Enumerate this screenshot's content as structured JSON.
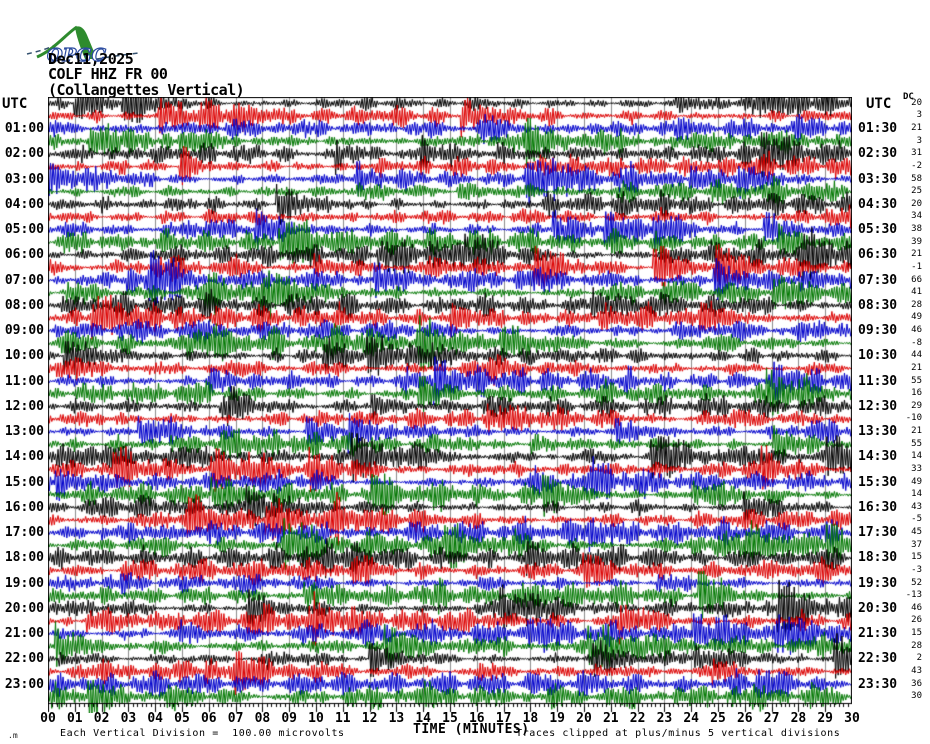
{
  "logo": {
    "text": "OPGC"
  },
  "header": {
    "date": "Dec11,2025",
    "station": "COLF HHZ FR 00",
    "location": "(Collangettes Vertical)"
  },
  "axis": {
    "utc_left": "UTC",
    "utc_right": "UTC",
    "dc_label": "DC",
    "left_time_labels": [
      "01:00",
      "02:00",
      "03:00",
      "04:00",
      "05:00",
      "06:00",
      "07:00",
      "08:00",
      "09:00",
      "10:00",
      "11:00",
      "12:00",
      "13:00",
      "14:00",
      "15:00",
      "16:00",
      "17:00",
      "18:00",
      "19:00",
      "20:00",
      "21:00",
      "22:00",
      "23:00"
    ],
    "right_time_labels": [
      "01:30",
      "02:30",
      "03:30",
      "04:30",
      "05:30",
      "06:30",
      "07:30",
      "08:30",
      "09:30",
      "10:30",
      "11:30",
      "12:30",
      "13:30",
      "14:30",
      "15:30",
      "16:30",
      "17:30",
      "18:30",
      "19:30",
      "20:30",
      "21:30",
      "22:30",
      "23:30"
    ],
    "minute_tick_labels": [
      "00",
      "01",
      "02",
      "03",
      "04",
      "05",
      "06",
      "07",
      "08",
      "09",
      "10",
      "11",
      "12",
      "13",
      "14",
      "15",
      "16",
      "17",
      "18",
      "19",
      "20",
      "21",
      "22",
      "23",
      "24",
      "25",
      "26",
      "27",
      "28",
      "29",
      "30"
    ]
  },
  "footer": {
    "division_note": "Each Vertical Division =  100.00 microvolts",
    "time_label": "TIME (MINUTES)",
    "clip_note": "Traces clipped at plus/minus 5 vertical divisions",
    "watermark": ".m"
  },
  "chart_data": {
    "type": "line",
    "title": "COLF HHZ FR 00 (Collangettes Vertical) Dec11,2025 helicorder",
    "xlabel": "TIME (MINUTES)",
    "x_range_minutes": [
      0,
      30
    ],
    "rows": 48,
    "minutes_per_row": 30,
    "first_row_start_utc": "00:00",
    "trace_color_cycle": [
      "#000000",
      "#dd0000",
      "#0000cc",
      "#007700"
    ],
    "grid": "vertical gray line every minute",
    "legend_position": "none",
    "dc_offsets_per_row": [
      20,
      3,
      21,
      3,
      31,
      -2,
      58,
      25,
      20,
      34,
      38,
      39,
      21,
      -1,
      66,
      41,
      28,
      49,
      46,
      -8,
      44,
      21,
      55,
      16,
      29,
      -10,
      21,
      55,
      14,
      33,
      49,
      14,
      43,
      -5,
      45,
      37,
      15,
      -3,
      52,
      -13,
      46,
      26,
      15,
      28,
      2,
      43,
      36,
      30
    ],
    "microvolts_per_division": 100,
    "clip_divisions": 5,
    "content": "continuous high-amplitude seismic noise traces, clipped bursts throughout"
  },
  "colors": {
    "background": "#ffffff",
    "grid": "#8c8c8c",
    "border": "#000000",
    "text": "#000000",
    "logo_green": "#2e8b2e",
    "logo_blue": "#2b4ba0"
  }
}
